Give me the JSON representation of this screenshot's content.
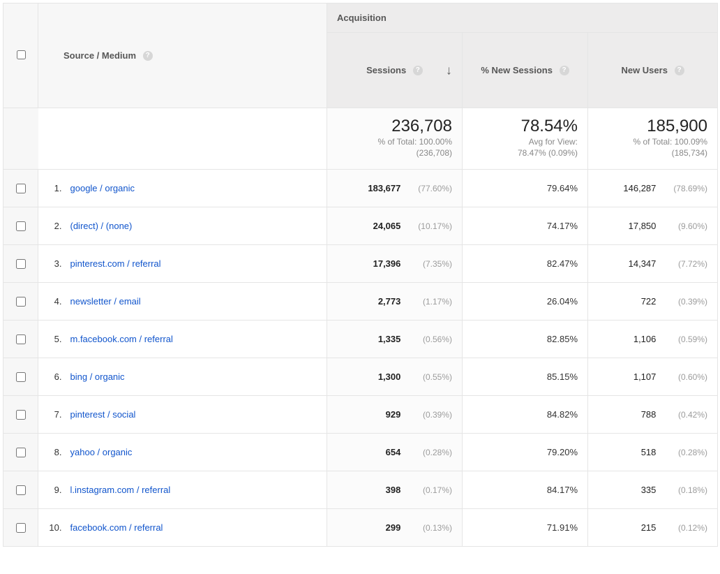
{
  "colors": {
    "header_bg": "#edecec",
    "header_bg_light": "#f7f7f7",
    "border": "#e5e5e5",
    "link": "#1155cc",
    "muted": "#9c9c9c",
    "sessions_col_bg": "#fbfbfb"
  },
  "table": {
    "dimension_label": "Source / Medium",
    "group_label": "Acquisition",
    "columns": {
      "sessions": {
        "label": "Sessions",
        "sort_desc": true
      },
      "pct_new": {
        "label": "% New Sessions",
        "sort_desc": false
      },
      "new_users": {
        "label": "New Users",
        "sort_desc": false
      }
    },
    "summary": {
      "sessions": {
        "value": "236,708",
        "sub1": "% of Total: 100.00%",
        "sub2": "(236,708)"
      },
      "pct_new": {
        "value": "78.54%",
        "sub1": "Avg for View:",
        "sub2": "78.47% (0.09%)"
      },
      "new_users": {
        "value": "185,900",
        "sub1": "% of Total: 100.09%",
        "sub2": "(185,734)"
      }
    },
    "rows": [
      {
        "n": "1.",
        "dim": "google / organic",
        "sess": "183,677",
        "sess_pct": "(77.60%)",
        "pnew": "79.64%",
        "newu": "146,287",
        "newu_pct": "(78.69%)"
      },
      {
        "n": "2.",
        "dim": "(direct) / (none)",
        "sess": "24,065",
        "sess_pct": "(10.17%)",
        "pnew": "74.17%",
        "newu": "17,850",
        "newu_pct": "(9.60%)"
      },
      {
        "n": "3.",
        "dim": "pinterest.com / referral",
        "sess": "17,396",
        "sess_pct": "(7.35%)",
        "pnew": "82.47%",
        "newu": "14,347",
        "newu_pct": "(7.72%)"
      },
      {
        "n": "4.",
        "dim": "newsletter / email",
        "sess": "2,773",
        "sess_pct": "(1.17%)",
        "pnew": "26.04%",
        "newu": "722",
        "newu_pct": "(0.39%)"
      },
      {
        "n": "5.",
        "dim": "m.facebook.com / referral",
        "sess": "1,335",
        "sess_pct": "(0.56%)",
        "pnew": "82.85%",
        "newu": "1,106",
        "newu_pct": "(0.59%)"
      },
      {
        "n": "6.",
        "dim": "bing / organic",
        "sess": "1,300",
        "sess_pct": "(0.55%)",
        "pnew": "85.15%",
        "newu": "1,107",
        "newu_pct": "(0.60%)"
      },
      {
        "n": "7.",
        "dim": "pinterest / social",
        "sess": "929",
        "sess_pct": "(0.39%)",
        "pnew": "84.82%",
        "newu": "788",
        "newu_pct": "(0.42%)"
      },
      {
        "n": "8.",
        "dim": "yahoo / organic",
        "sess": "654",
        "sess_pct": "(0.28%)",
        "pnew": "79.20%",
        "newu": "518",
        "newu_pct": "(0.28%)"
      },
      {
        "n": "9.",
        "dim": "l.instagram.com / referral",
        "sess": "398",
        "sess_pct": "(0.17%)",
        "pnew": "84.17%",
        "newu": "335",
        "newu_pct": "(0.18%)"
      },
      {
        "n": "10.",
        "dim": "facebook.com / referral",
        "sess": "299",
        "sess_pct": "(0.13%)",
        "pnew": "71.91%",
        "newu": "215",
        "newu_pct": "(0.12%)"
      }
    ]
  }
}
